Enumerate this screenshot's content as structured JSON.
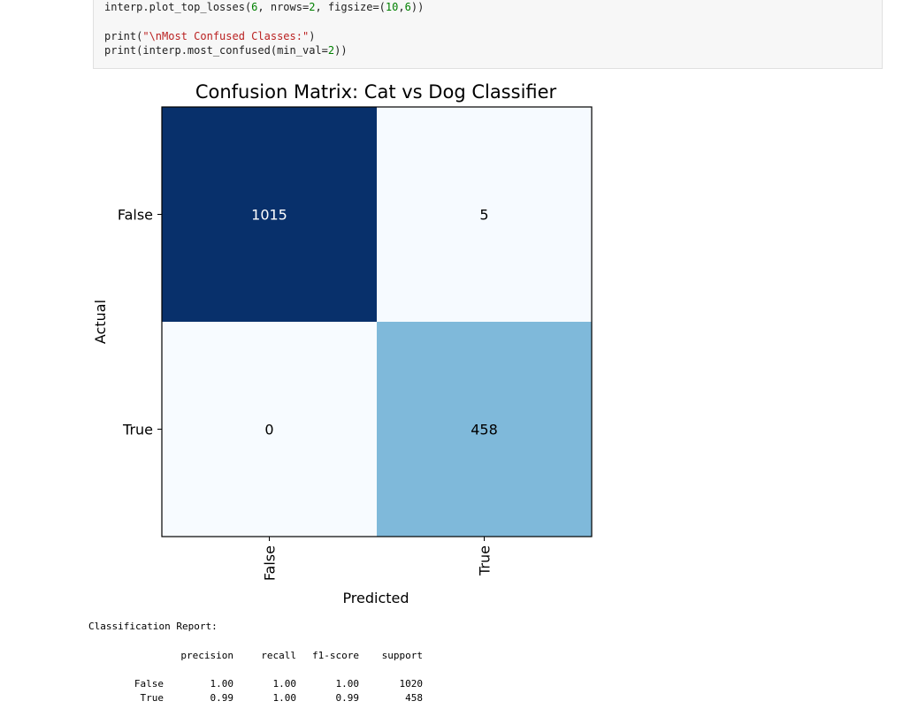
{
  "code_cell": {
    "line1": {
      "a": "interp.plot_top_losses(",
      "n1": "6",
      "b": ", nrows=",
      "n2": "2",
      "c": ", figsize=(",
      "n3": "10",
      "d": ",",
      "n4": "6",
      "e": "))"
    },
    "line3": {
      "a": "print(",
      "s": "\"\\nMost Confused Classes:\"",
      "e": ")"
    },
    "line4": {
      "a": "print(interp.most_confused(min_val=",
      "n": "2",
      "e": "))"
    }
  },
  "chart_data": {
    "type": "heatmap",
    "title": "Confusion Matrix: Cat vs Dog Classifier",
    "xlabel": "Predicted",
    "ylabel": "Actual",
    "x_categories": [
      "False",
      "True"
    ],
    "y_categories": [
      "False",
      "True"
    ],
    "values": [
      [
        1015,
        5
      ],
      [
        0,
        458
      ]
    ],
    "colormap": "Blues",
    "colors": {
      "max": "#08306b",
      "min": "#f7fbff",
      "mid": "#7fb6da"
    }
  },
  "report": {
    "title": "Classification Report:",
    "headers": [
      "precision",
      "recall",
      "f1-score",
      "support"
    ],
    "rows": [
      {
        "label": "False",
        "precision": "1.00",
        "recall": "1.00",
        "f1": "1.00",
        "support": "1020"
      },
      {
        "label": "True",
        "precision": "0.99",
        "recall": "1.00",
        "f1": "0.99",
        "support": "458"
      }
    ]
  }
}
